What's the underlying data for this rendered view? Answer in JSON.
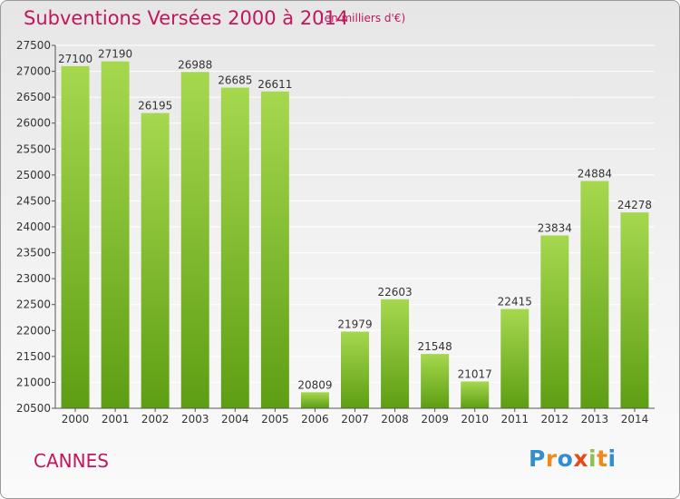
{
  "header": {
    "title": "Subventions Versées 2000 à 2014",
    "unit_note": "(en milliers d'€)"
  },
  "footer": {
    "city": "CANNES",
    "logo_letters": [
      "P",
      "r",
      "o",
      "x",
      "i",
      "t",
      "i"
    ]
  },
  "colors": {
    "title": "#c0175e",
    "bar_top": "#a6d84e",
    "bar_bottom": "#5e9e14",
    "grid": "#ffffff"
  },
  "chart_data": {
    "type": "bar",
    "categories": [
      "2000",
      "2001",
      "2002",
      "2003",
      "2004",
      "2005",
      "2006",
      "2007",
      "2008",
      "2009",
      "2010",
      "2011",
      "2012",
      "2013",
      "2014"
    ],
    "values": [
      27100,
      27190,
      26195,
      26988,
      26685,
      26611,
      20809,
      21979,
      22603,
      21548,
      21017,
      22415,
      23834,
      24884,
      24278
    ],
    "ylim": [
      20500,
      27500
    ],
    "yticks": [
      20500,
      21000,
      21500,
      22000,
      22500,
      23000,
      23500,
      24000,
      24500,
      25000,
      25500,
      26000,
      26500,
      27000,
      27500
    ],
    "grid": true,
    "data_labels": true
  }
}
